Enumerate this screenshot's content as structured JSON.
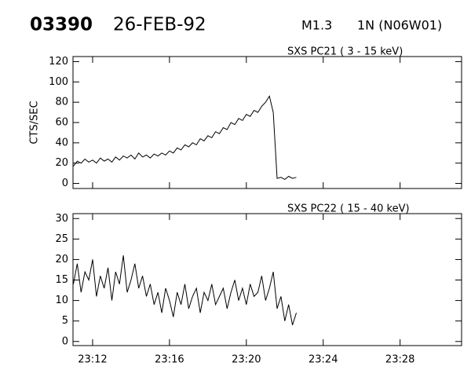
{
  "header": {
    "event": "03390",
    "date": "26-FEB-92",
    "class": "M1.3",
    "flare": "1N (N06W01)"
  },
  "chart_data": [
    {
      "type": "line",
      "title": "SXS PC21  (  3 - 15 keV)",
      "ylabel": "CTS/SEC",
      "x": [
        11.0,
        11.2,
        11.4,
        11.6,
        11.8,
        12.0,
        12.2,
        12.4,
        12.6,
        12.8,
        13.0,
        13.2,
        13.4,
        13.6,
        13.8,
        14.0,
        14.2,
        14.4,
        14.6,
        14.8,
        15.0,
        15.2,
        15.4,
        15.6,
        15.8,
        16.0,
        16.2,
        16.4,
        16.6,
        16.8,
        17.0,
        17.2,
        17.4,
        17.6,
        17.8,
        18.0,
        18.2,
        18.4,
        18.6,
        18.8,
        19.0,
        19.2,
        19.4,
        19.6,
        19.8,
        20.0,
        20.2,
        20.4,
        20.6,
        20.8,
        21.0,
        21.2,
        21.4,
        21.6,
        21.8,
        22.0,
        22.2,
        22.4,
        22.6
      ],
      "series": [
        {
          "color": "#000000",
          "values": [
            17,
            22,
            20,
            24,
            21,
            23,
            20,
            25,
            22,
            24,
            21,
            26,
            23,
            27,
            25,
            28,
            24,
            30,
            26,
            28,
            25,
            29,
            27,
            30,
            28,
            32,
            30,
            35,
            33,
            38,
            36,
            40,
            38,
            44,
            42,
            47,
            45,
            51,
            49,
            55,
            53,
            60,
            58,
            64,
            62,
            68,
            66,
            72,
            70,
            76,
            80,
            86,
            70,
            5,
            6,
            4,
            7,
            5,
            6
          ]
        }
      ],
      "xlim": [
        10.98,
        31.2
      ],
      "ylim": [
        -5,
        125
      ],
      "yticks": [
        0,
        20,
        40,
        60,
        80,
        100,
        120
      ]
    },
    {
      "type": "line",
      "title": "SXS PC22  ( 15 - 40 keV)",
      "x": [
        11.0,
        11.2,
        11.4,
        11.6,
        11.8,
        12.0,
        12.2,
        12.4,
        12.6,
        12.8,
        13.0,
        13.2,
        13.4,
        13.6,
        13.8,
        14.0,
        14.2,
        14.4,
        14.6,
        14.8,
        15.0,
        15.2,
        15.4,
        15.6,
        15.8,
        16.0,
        16.2,
        16.4,
        16.6,
        16.8,
        17.0,
        17.2,
        17.4,
        17.6,
        17.8,
        18.0,
        18.2,
        18.4,
        18.6,
        18.8,
        19.0,
        19.2,
        19.4,
        19.6,
        19.8,
        20.0,
        20.2,
        20.4,
        20.6,
        20.8,
        21.0,
        21.2,
        21.4,
        21.6,
        21.8,
        22.0,
        22.2,
        22.4,
        22.6
      ],
      "series": [
        {
          "color": "#000000",
          "values": [
            14,
            19,
            12,
            17,
            15,
            20,
            11,
            16,
            13,
            18,
            10,
            17,
            14,
            21,
            12,
            15,
            19,
            13,
            16,
            11,
            14,
            9,
            12,
            7,
            13,
            10,
            6,
            12,
            9,
            14,
            8,
            11,
            13,
            7,
            12,
            10,
            14,
            9,
            11,
            13,
            8,
            12,
            15,
            10,
            13,
            9,
            14,
            11,
            12,
            16,
            10,
            13,
            17,
            8,
            11,
            5,
            9,
            4,
            7
          ]
        }
      ],
      "xlim": [
        10.98,
        31.2
      ],
      "ylim": [
        -1,
        31.2
      ],
      "yticks": [
        0,
        5,
        10,
        15,
        20,
        25,
        30
      ],
      "xticks": [
        {
          "value": 12,
          "label": "23:12"
        },
        {
          "value": 16,
          "label": "23:16"
        },
        {
          "value": 20,
          "label": "23:20"
        },
        {
          "value": 24,
          "label": "23:24"
        },
        {
          "value": 28,
          "label": "23:28"
        }
      ]
    }
  ]
}
